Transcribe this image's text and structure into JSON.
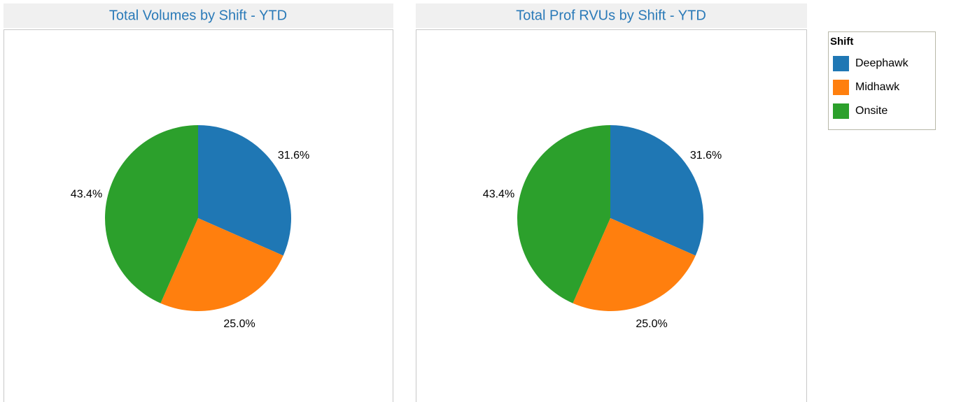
{
  "chart_data": [
    {
      "type": "pie",
      "title": "Total Volumes by Shift - YTD",
      "values": [
        31.6,
        25.0,
        43.4
      ],
      "value_labels": [
        "31.6%",
        "25.0%",
        "43.4%"
      ]
    },
    {
      "type": "pie",
      "title": "Total Prof RVUs by Shift - YTD",
      "values": [
        31.6,
        25.0,
        43.4
      ],
      "value_labels": [
        "31.6%",
        "25.0%",
        "43.4%"
      ]
    }
  ],
  "legend": {
    "title": "Shift",
    "categories": [
      "Deephawk",
      "Midhawk",
      "Onsite"
    ],
    "colors": [
      "#1f77b4",
      "#ff7f0e",
      "#2ca02c"
    ]
  }
}
